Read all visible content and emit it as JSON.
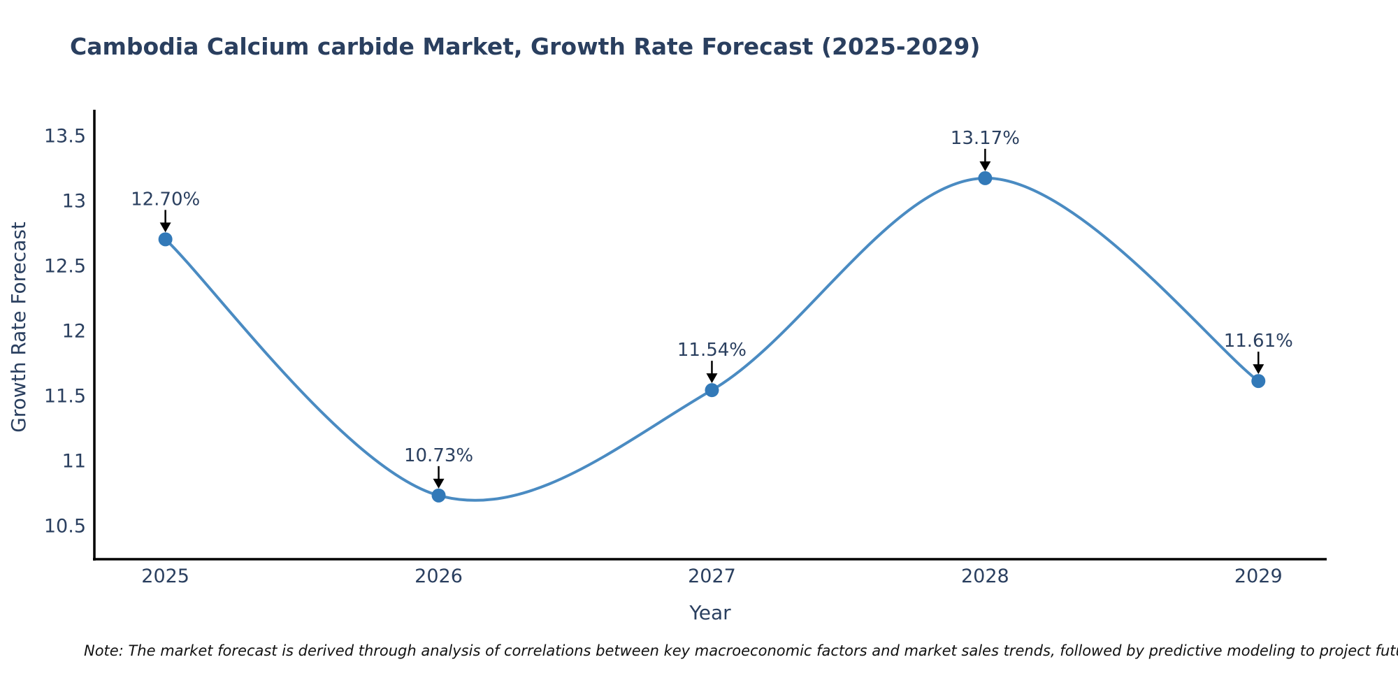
{
  "chart": {
    "title": "Cambodia Calcium carbide Market, Growth Rate Forecast (2025-2029)",
    "note": "Note: The market forecast is derived through analysis of correlations between key macroeconomic factors and market sales trends, followed by predictive modeling to project future sal"
  },
  "chart_data": {
    "type": "line",
    "line_shape": "spline",
    "x": [
      2025,
      2026,
      2027,
      2028,
      2029
    ],
    "values": [
      12.7,
      10.73,
      11.54,
      13.17,
      11.61
    ],
    "point_labels": [
      "12.70%",
      "10.73%",
      "11.54%",
      "13.17%",
      "11.61%"
    ],
    "title": "Cambodia Calcium carbide Market, Growth Rate Forecast (2025-2029)",
    "xlabel": "Year",
    "ylabel": "Growth Rate Forecast",
    "xticks": [
      2025,
      2026,
      2027,
      2028,
      2029
    ],
    "yticks": [
      10.5,
      11,
      11.5,
      12,
      12.5,
      13,
      13.5
    ],
    "xlim": [
      2024.74,
      2029.25
    ],
    "ylim": [
      10.24,
      13.68
    ],
    "grid": false,
    "legend": "none",
    "annotations_arrow": true,
    "colors": {
      "background": "#ffffff",
      "text": "#2a3f5f",
      "note_text": "#111111",
      "axis": "#000000",
      "line": "#4a8bc2",
      "marker": "#3279b8",
      "arrow": "#000000"
    }
  }
}
